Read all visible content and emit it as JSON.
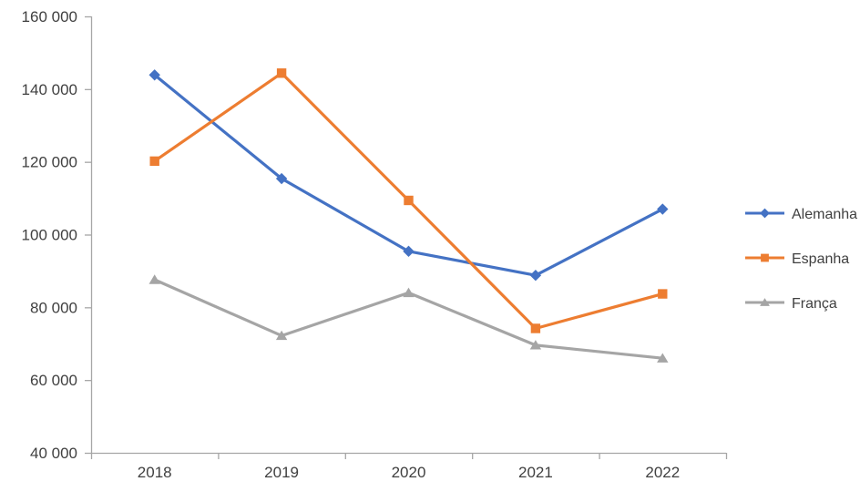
{
  "chart_data": {
    "type": "line",
    "title": "",
    "xlabel": "",
    "ylabel": "",
    "categories": [
      "2018",
      "2019",
      "2020",
      "2021",
      "2022"
    ],
    "series": [
      {
        "name": "Alemanha",
        "color": "#4472C4",
        "marker": "diamond",
        "values": [
          143900,
          115400,
          95400,
          88800,
          107000
        ]
      },
      {
        "name": "Espanha",
        "color": "#ED7D31",
        "marker": "square",
        "values": [
          120200,
          144400,
          109400,
          74200,
          83700
        ]
      },
      {
        "name": "França",
        "color": "#A5A5A5",
        "marker": "triangle",
        "values": [
          87600,
          72200,
          84000,
          69600,
          66000
        ]
      }
    ],
    "ylim": [
      40000,
      160000
    ],
    "y_tick_step": 20000,
    "y_tick_labels": [
      "40 000",
      "60 000",
      "80 000",
      "100 000",
      "120 000",
      "140 000",
      "160 000"
    ],
    "grid": false,
    "legend_position": "right"
  },
  "colors": {
    "background": "#FFFFFF",
    "axis_line": "#A6A6A6",
    "tick_label_text": "#404040",
    "legend_text": "#404040"
  }
}
